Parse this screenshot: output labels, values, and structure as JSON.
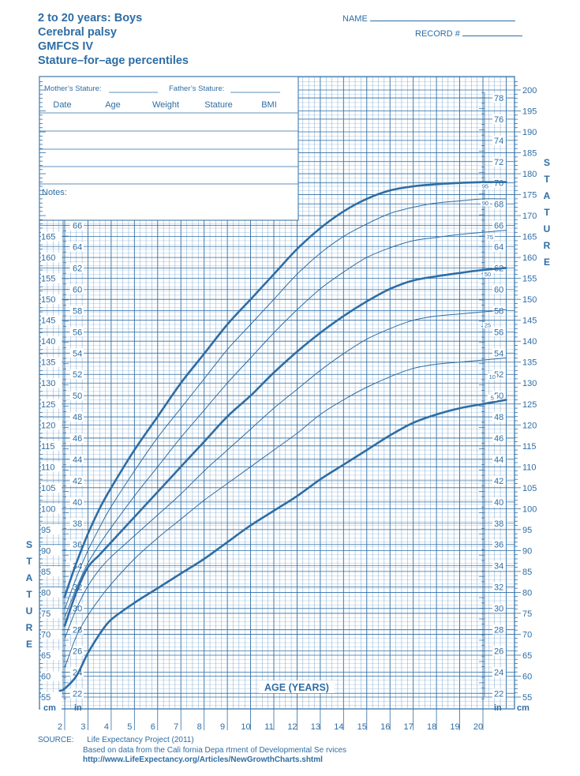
{
  "header": {
    "title_lines": [
      "2 to 20 years: Boys",
      "Cerebral palsy",
      "GMFCS IV",
      "Stature–for–age percentiles"
    ],
    "name_label": "NAME",
    "record_label": "RECORD #"
  },
  "record_box": {
    "mothers_stature_label": "Mother’s Stature:",
    "fathers_stature_label": "Father’s Stature:",
    "columns": [
      "Date",
      "Age",
      "Weight",
      "Stature",
      "BMI"
    ],
    "notes_label": "Notes:"
  },
  "source": {
    "label": "SOURCE:",
    "line1": "Life Expectancy Project (2011)",
    "line2": "Based on data from the Cali    fornia Depa  rtment of Developmental Se  rvices",
    "line3": "http://www.LifeExpectancy.org/Articles/NewGrowthCharts.shtml"
  },
  "colors": {
    "ink": "#2e6da4",
    "grid": "#6f9fcb"
  },
  "chart_data": {
    "type": "line",
    "xlabel": "AGE (YEARS)",
    "ylabel": "STATURE",
    "x_ticks": [
      2,
      3,
      4,
      5,
      6,
      7,
      8,
      9,
      10,
      11,
      12,
      13,
      14,
      15,
      16,
      17,
      18,
      19,
      20
    ],
    "xlim": [
      1,
      21
    ],
    "ylim_cm": [
      55,
      202
    ],
    "cm_ticks": [
      55,
      60,
      65,
      70,
      75,
      80,
      85,
      90,
      95,
      100,
      105,
      110,
      115,
      120,
      125,
      130,
      135,
      140,
      145,
      150,
      155,
      160,
      165,
      170,
      175,
      180,
      185,
      190,
      195,
      200
    ],
    "in_ticks_left": [
      22,
      24,
      26,
      28,
      30,
      32,
      34,
      36,
      38,
      40,
      42,
      44,
      46,
      48,
      50,
      52,
      54,
      56,
      58,
      60,
      62,
      64,
      66
    ],
    "in_ticks_right": [
      22,
      24,
      26,
      28,
      30,
      32,
      34,
      36,
      38,
      40,
      42,
      44,
      46,
      48,
      50,
      52,
      54,
      56,
      58,
      60,
      62,
      64,
      66,
      68,
      70,
      72,
      74,
      76,
      78
    ],
    "cm_unit": "cm",
    "in_unit": "in",
    "series": [
      {
        "name": "95",
        "bold": true,
        "label_at": [
          20.1,
          176.8
        ],
        "x": [
          2,
          2.5,
          3,
          3.5,
          4,
          5,
          6,
          7,
          8,
          9,
          10,
          11,
          12,
          13,
          14,
          15,
          16,
          17,
          18,
          19,
          20,
          21
        ],
        "y": [
          79,
          87,
          94,
          100,
          105,
          114,
          122,
          130,
          137,
          144,
          150,
          156,
          162,
          167,
          171,
          174,
          176,
          177,
          177.5,
          177.8,
          178,
          178
        ]
      },
      {
        "name": "90",
        "bold": false,
        "label_at": [
          20.1,
          172.8
        ],
        "x": [
          2,
          2.5,
          3,
          3.5,
          4,
          5,
          6,
          7,
          8,
          9,
          10,
          11,
          12,
          13,
          14,
          15,
          16,
          17,
          18,
          19,
          20,
          21
        ],
        "y": [
          76,
          83.5,
          90,
          95.5,
          100.5,
          109,
          117,
          124,
          131,
          138,
          144,
          150,
          156,
          161,
          165,
          168,
          170.5,
          172,
          173,
          173.5,
          174,
          174
        ]
      },
      {
        "name": "75",
        "bold": false,
        "label_at": [
          20.3,
          164.6
        ],
        "x": [
          2,
          2.5,
          3,
          3.5,
          4,
          5,
          6,
          7,
          8,
          9,
          10,
          11,
          12,
          13,
          14,
          15,
          16,
          17,
          18,
          19,
          20,
          21
        ],
        "y": [
          74,
          81,
          87,
          91.5,
          95.5,
          103,
          110,
          117,
          123.5,
          130,
          136,
          142,
          147.5,
          152.5,
          156.5,
          160,
          162.3,
          164,
          164.8,
          165.5,
          166,
          166.5
        ]
      },
      {
        "name": "50",
        "bold": true,
        "label_at": [
          20.2,
          155.8
        ],
        "x": [
          2,
          2.5,
          3,
          3.5,
          4,
          5,
          6,
          7,
          8,
          9,
          10,
          11,
          12,
          13,
          14,
          15,
          16,
          17,
          18,
          19,
          20,
          21
        ],
        "y": [
          72,
          80,
          86,
          89,
          92,
          98,
          104,
          110,
          116,
          122,
          127,
          132.5,
          137.5,
          142,
          146,
          149.5,
          152.5,
          154.5,
          155.5,
          156.3,
          157,
          157.5
        ]
      },
      {
        "name": "25",
        "bold": false,
        "label_at": [
          20.2,
          143.6
        ],
        "x": [
          2,
          2.5,
          3,
          3.5,
          4,
          5,
          6,
          7,
          8,
          9,
          10,
          11,
          12,
          13,
          14,
          15,
          16,
          17,
          18,
          19,
          20,
          21
        ],
        "y": [
          69,
          76,
          81.5,
          85.5,
          88.5,
          93.5,
          98.5,
          103.5,
          109,
          114,
          119,
          124,
          128.5,
          133,
          137,
          140.5,
          143,
          145,
          146,
          146.5,
          147,
          147.5
        ]
      },
      {
        "name": "10",
        "bold": false,
        "label_at": [
          20.4,
          131.3
        ],
        "x": [
          2,
          2.5,
          3,
          3.5,
          4,
          5,
          6,
          7,
          8,
          9,
          10,
          11,
          12,
          13,
          14,
          15,
          16,
          17,
          18,
          19,
          20,
          21
        ],
        "y": [
          62,
          69.5,
          74.5,
          78.5,
          82,
          88,
          93,
          97.5,
          102,
          106,
          110,
          114,
          118,
          122.5,
          126,
          129,
          131.5,
          133.5,
          134.5,
          135,
          135.5,
          136
        ]
      },
      {
        "name": "5",
        "bold": true,
        "label_at": [
          20.4,
          126.3
        ],
        "x": [
          1.8,
          2,
          2.5,
          3,
          3.5,
          4,
          5,
          6,
          7,
          8,
          9,
          10,
          11,
          12,
          13,
          14,
          15,
          16,
          17,
          18,
          19,
          20,
          21
        ],
        "y": [
          56.5,
          57,
          60,
          65.5,
          70,
          73.5,
          77.5,
          81,
          84.5,
          88,
          92,
          96,
          99.5,
          103,
          107,
          110.5,
          114,
          117.5,
          120.5,
          122.5,
          124,
          125,
          126
        ]
      }
    ]
  }
}
